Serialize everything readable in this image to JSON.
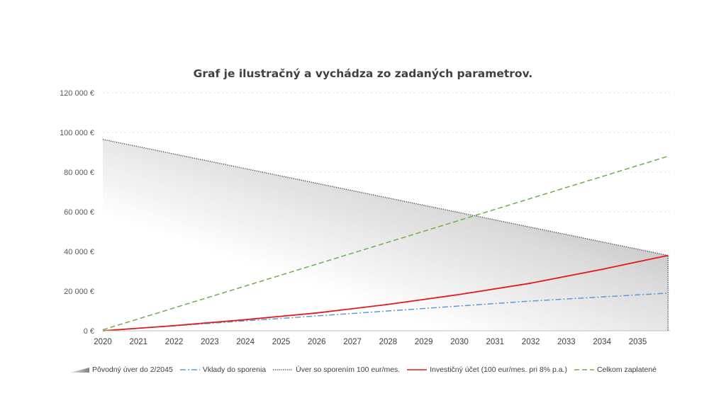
{
  "chart_data": {
    "type": "line",
    "title": "Graf je ilustračný a vychádza zo zadaných parametrov.",
    "x_ticks": [
      "2020",
      "2021",
      "2022",
      "2023",
      "2024",
      "2025",
      "2026",
      "2027",
      "2028",
      "2029",
      "2030",
      "2031",
      "2032",
      "2033",
      "2034",
      "2035"
    ],
    "x_range": [
      2020,
      2035.9
    ],
    "y_ticks": [
      "0 €",
      "20 000 €",
      "40 000 €",
      "60 000 €",
      "80 000 €",
      "100 000 €",
      "120 000 €"
    ],
    "ylim": [
      0,
      120000
    ],
    "grid": "horizontal-dashed",
    "legend_position": "bottom",
    "series": [
      {
        "name": "Pôvodný úver do 2/2045",
        "type": "area",
        "color": "#a6a6a6",
        "x": [
          2020,
          2035.85
        ],
        "y": [
          96500,
          38000
        ],
        "drop_to_zero_at_end": true
      },
      {
        "name": "Vklady do sporenia",
        "type": "line",
        "style": "dashdot",
        "color": "#5b9bd5",
        "x": [
          2020,
          2024,
          2028,
          2032,
          2035.85
        ],
        "y": [
          0,
          5000,
          10000,
          15000,
          19000
        ]
      },
      {
        "name": "Úver so sporením 100 eur/mes.",
        "type": "line",
        "style": "dotted",
        "color": "#44546a",
        "x": [
          2020,
          2035.85
        ],
        "y": [
          96500,
          38000
        ],
        "drop_to_zero_at_end": true
      },
      {
        "name": "Investičný účet (100 eur/mes. pri 8% p.a.)",
        "type": "line",
        "style": "solid",
        "color": "#e31a1c",
        "x": [
          2020,
          2022,
          2024,
          2026,
          2028,
          2030,
          2032,
          2034,
          2035.85
        ],
        "y": [
          0,
          2600,
          5600,
          9000,
          13300,
          18300,
          24000,
          31000,
          38000
        ]
      },
      {
        "name": "Celkom zaplatené",
        "type": "line",
        "style": "dashed",
        "color": "#70ad47",
        "x": [
          2020,
          2035.85
        ],
        "y": [
          500,
          88000
        ]
      }
    ]
  }
}
